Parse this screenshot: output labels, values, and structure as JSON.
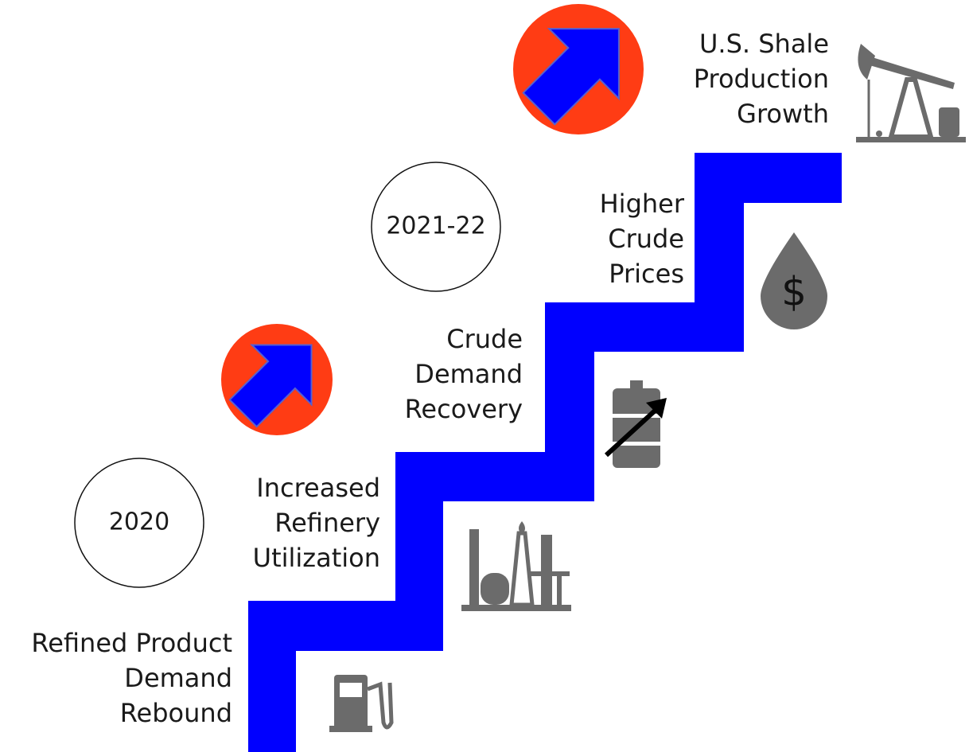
{
  "steps": [
    {
      "lines": [
        "Refined Product",
        "Demand",
        "Rebound"
      ]
    },
    {
      "lines": [
        "Increased",
        "Refinery",
        "Utilization"
      ]
    },
    {
      "lines": [
        "Crude",
        "Demand",
        "Recovery"
      ]
    },
    {
      "lines": [
        "Higher",
        "Crude",
        "Prices"
      ]
    },
    {
      "lines": [
        "U.S. Shale",
        "Production",
        "Growth"
      ]
    }
  ],
  "periods": [
    "2020",
    "2021-22"
  ]
}
